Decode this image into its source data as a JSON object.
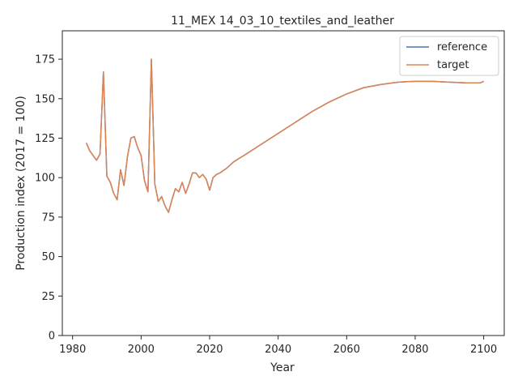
{
  "chart_data": {
    "type": "line",
    "title": "11_MEX 14_03_10_textiles_and_leather",
    "xlabel": "Year",
    "ylabel": "Production index (2017 = 100)",
    "xlim": [
      1977,
      2106
    ],
    "ylim": [
      0,
      193
    ],
    "xticks": [
      1980,
      2000,
      2020,
      2040,
      2060,
      2080,
      2100
    ],
    "yticks": [
      0,
      25,
      50,
      75,
      100,
      125,
      150,
      175
    ],
    "grid": false,
    "legend_position": "top-right",
    "series": [
      {
        "name": "reference",
        "color": "#4c72b0",
        "x": [
          1984,
          1985,
          1986,
          1987,
          1988,
          1989,
          1990,
          1991,
          1992,
          1993,
          1994,
          1995,
          1996,
          1997,
          1998,
          1999,
          2000,
          2001,
          2002,
          2003,
          2004,
          2005,
          2006,
          2007,
          2008,
          2009,
          2010,
          2011,
          2012,
          2013,
          2014,
          2015,
          2016,
          2017,
          2018,
          2019,
          2020,
          2021,
          2022,
          2023,
          2025,
          2027,
          2030,
          2035,
          2040,
          2045,
          2050,
          2055,
          2060,
          2065,
          2070,
          2075,
          2080,
          2085,
          2090,
          2095,
          2099,
          2100
        ],
        "y": [
          122,
          117,
          114,
          111,
          115,
          167,
          101,
          97,
          90,
          86,
          105,
          95,
          113,
          125,
          126,
          119,
          114,
          98,
          91,
          175,
          96,
          85,
          88,
          82,
          78,
          86,
          93,
          91,
          97,
          90,
          96,
          103,
          103,
          100,
          102,
          99,
          92,
          100,
          102,
          103,
          106,
          110,
          114,
          121,
          128,
          135,
          142,
          148,
          153,
          157,
          159,
          160.5,
          161,
          161,
          160.5,
          160,
          160,
          161
        ]
      },
      {
        "name": "target",
        "color": "#dd8452",
        "x": [
          1984,
          1985,
          1986,
          1987,
          1988,
          1989,
          1990,
          1991,
          1992,
          1993,
          1994,
          1995,
          1996,
          1997,
          1998,
          1999,
          2000,
          2001,
          2002,
          2003,
          2004,
          2005,
          2006,
          2007,
          2008,
          2009,
          2010,
          2011,
          2012,
          2013,
          2014,
          2015,
          2016,
          2017,
          2018,
          2019,
          2020,
          2021,
          2022,
          2023,
          2025,
          2027,
          2030,
          2035,
          2040,
          2045,
          2050,
          2055,
          2060,
          2065,
          2070,
          2075,
          2080,
          2085,
          2090,
          2095,
          2099,
          2100
        ],
        "y": [
          122,
          117,
          114,
          111,
          115,
          167,
          101,
          97,
          90,
          86,
          105,
          95,
          113,
          125,
          126,
          119,
          114,
          98,
          91,
          175,
          96,
          85,
          88,
          82,
          78,
          86,
          93,
          91,
          97,
          90,
          96,
          103,
          103,
          100,
          102,
          99,
          92,
          100,
          102,
          103,
          106,
          110,
          114,
          121,
          128,
          135,
          142,
          148,
          153,
          157,
          159,
          160.5,
          161,
          161,
          160.5,
          160,
          160,
          161
        ]
      }
    ]
  }
}
